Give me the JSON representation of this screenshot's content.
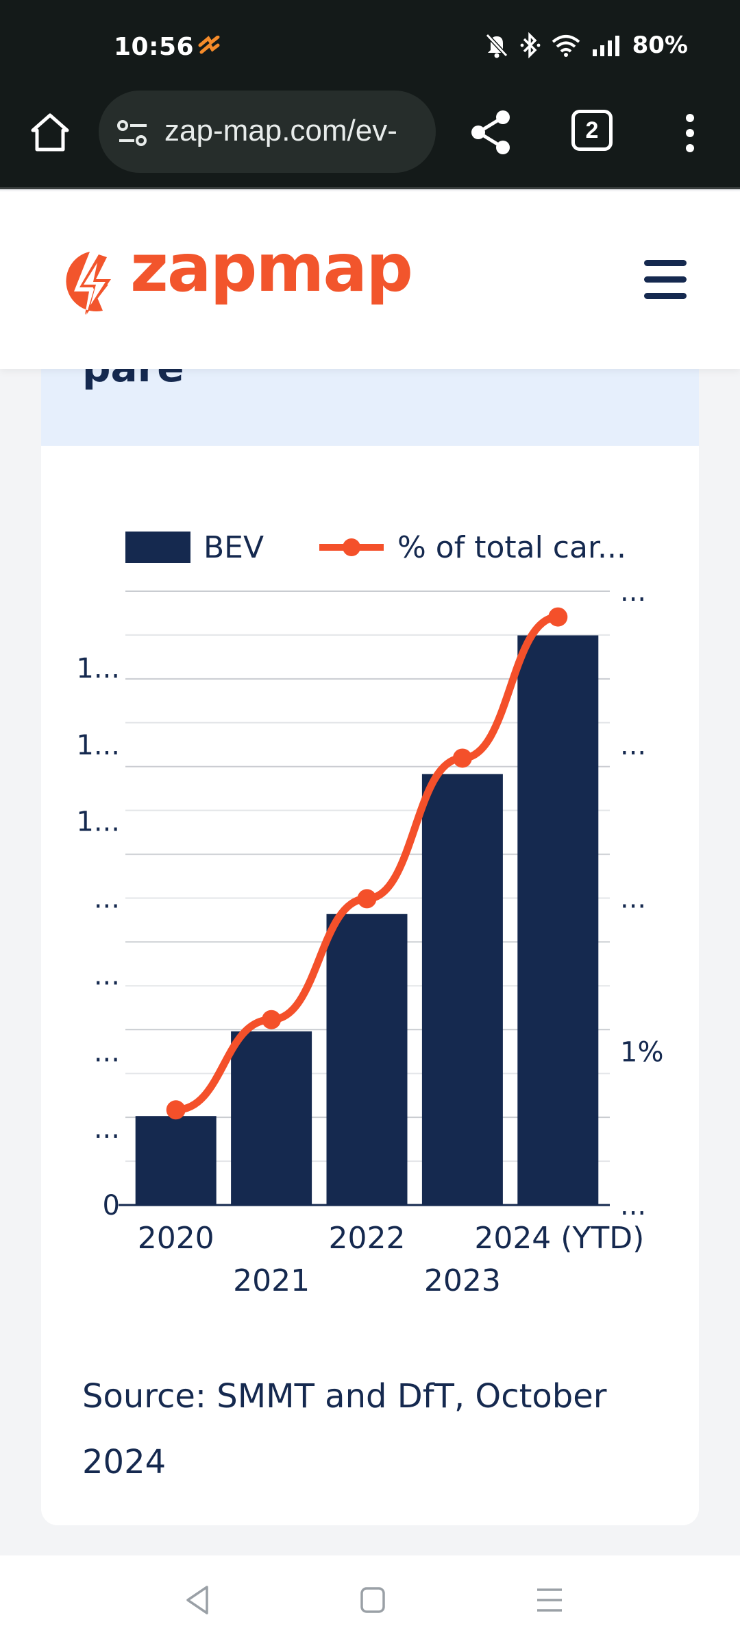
{
  "status_bar": {
    "time": "10:56",
    "battery": "80%",
    "icons": [
      "app-notification-icon",
      "mute-icon",
      "bluetooth-icon",
      "wifi-icon",
      "signal-icon"
    ]
  },
  "browser": {
    "url": "zap-map.com/ev-",
    "tab_count": "2",
    "icons": [
      "home-icon",
      "site-settings-icon",
      "share-icon",
      "more-icon"
    ]
  },
  "site": {
    "logo_text": "zapmap",
    "menu_icon": "hamburger-icon"
  },
  "card": {
    "title_fragment": "pare",
    "source": "Source: SMMT and DfT, October 2024"
  },
  "colors": {
    "bar": "#15294f",
    "line": "#f4502a",
    "accent": "#f2552c",
    "card_header_bg": "#e6effc"
  },
  "chart_data": {
    "type": "bar",
    "categories": [
      "2020",
      "2021",
      "2022",
      "2023",
      "2024 (YTD)"
    ],
    "legend_position": "top",
    "grid": true,
    "series": [
      {
        "name": "BEV",
        "type": "bar",
        "axis": "left",
        "values": [
          0.145,
          0.283,
          0.474,
          0.702,
          0.928
        ]
      },
      {
        "name": "% of total car...",
        "type": "line",
        "axis": "right",
        "values": [
          0.155,
          0.302,
          0.499,
          0.728,
          0.958
        ]
      }
    ],
    "y_left_ticks": [
      "0",
      "...",
      "...",
      "...",
      "...",
      "1...",
      "1...",
      "1..."
    ],
    "y_right_ticks": [
      "...",
      "1%",
      "...",
      "...",
      "..."
    ]
  }
}
